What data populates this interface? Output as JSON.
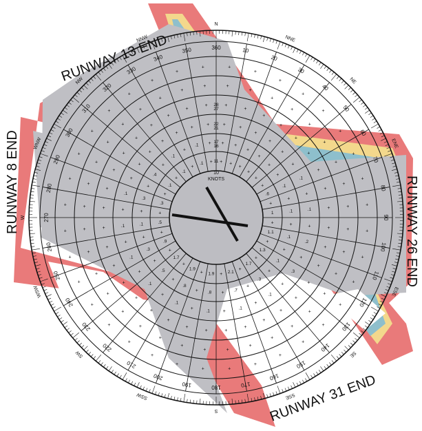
{
  "diagram": {
    "colors": {
      "band_red": "#e97a7a",
      "band_yellow": "#f3d88c",
      "band_blue": "#8ebfcc",
      "runway_gray": "#bfbfc4",
      "center_gray": "#bdbdc2",
      "line": "#111111",
      "hand": "#111111",
      "background": "#ffffff"
    },
    "runways": {
      "r13_end": "RUNWAY 13 END",
      "r31_end": "RUNWAY 31 END",
      "r8_end": "RUNWAY 8 END",
      "r26_end": "RUNWAY 26 END"
    },
    "compass": {
      "degree_labels": [
        "360",
        "10",
        "20",
        "30",
        "40",
        "50",
        "60",
        "70",
        "80",
        "90",
        "100",
        "110",
        "120",
        "130",
        "140",
        "150",
        "160",
        "170",
        "180",
        "190",
        "200",
        "210",
        "220",
        "230",
        "240",
        "250",
        "260",
        "270",
        "280",
        "290",
        "300",
        "310",
        "320",
        "330",
        "340",
        "350"
      ],
      "cardinals": [
        "N",
        "NNE",
        "NE",
        "ENE",
        "E",
        "ESE",
        "SE",
        "SSE",
        "S",
        "SSW",
        "SW",
        "WSW",
        "W",
        "WNW",
        "NW",
        "NNW"
      ]
    },
    "speed_rings": {
      "unit": "KNOTS",
      "labels": [
        "10",
        "11",
        "16",
        "17",
        "21",
        "22",
        "27",
        "28"
      ]
    },
    "grid_values": [
      ".6",
      "1",
      "1.1",
      "1.3",
      "1.7",
      "2.1",
      "1.9",
      "1.9",
      "1.7",
      ".9",
      ".5",
      ".3",
      ".1",
      ".1",
      ".1",
      ".1",
      ".1",
      ".1",
      ".1",
      ".3",
      ".7",
      ".8",
      ".8",
      ".5",
      ".3",
      ".1",
      ".3",
      ".4",
      ".1",
      ".1",
      ".1",
      ".1",
      ".2",
      ".3",
      ".1",
      ".1",
      ".1",
      ".1",
      ".1",
      ".1",
      ".1",
      ".1"
    ]
  }
}
